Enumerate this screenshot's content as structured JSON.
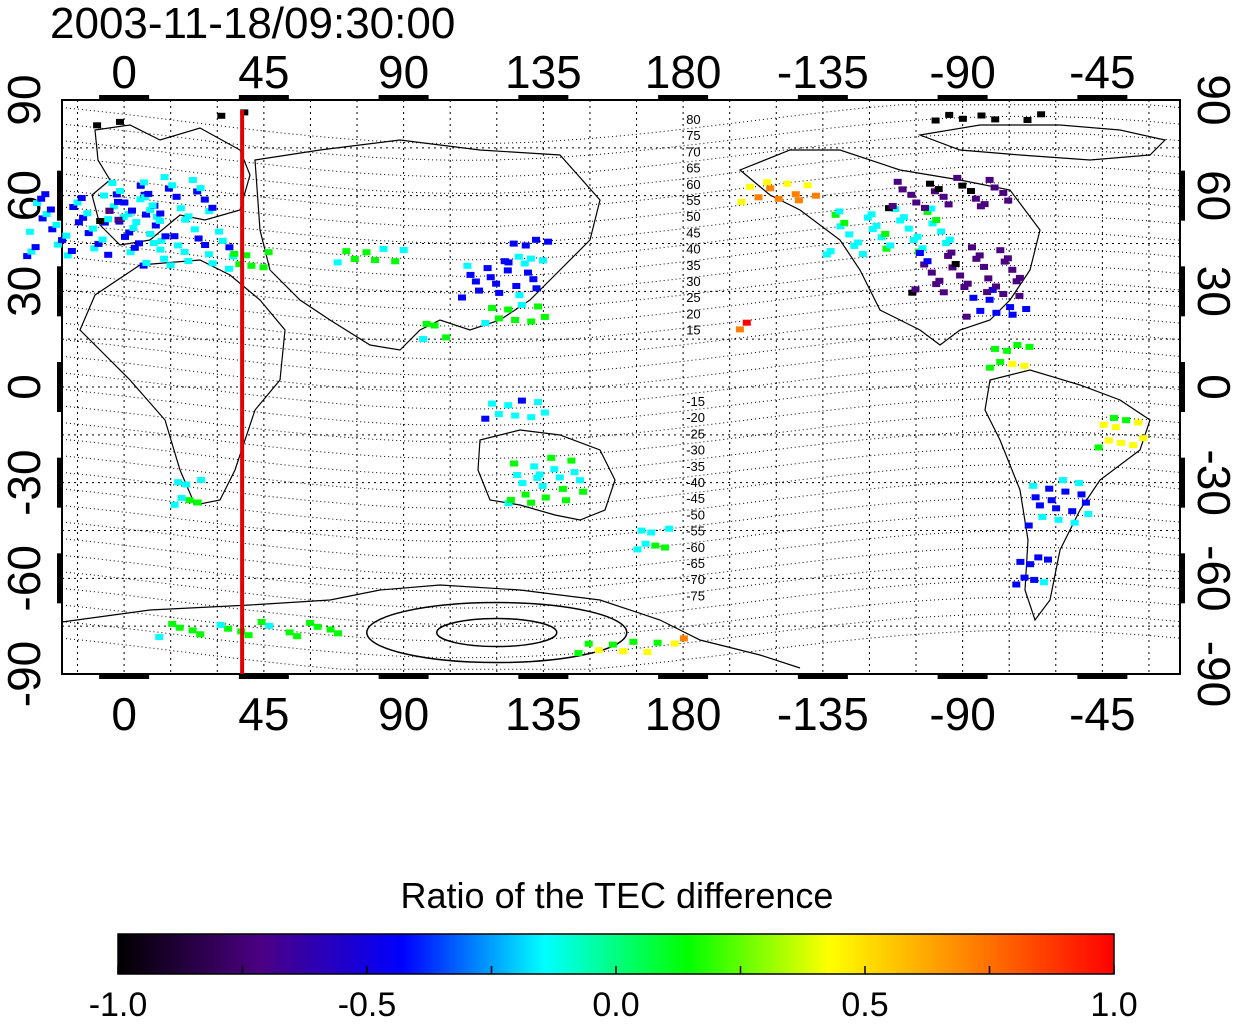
{
  "title": "2003-11-18/09:30:00",
  "lon_ticks": [
    {
      "label": "0",
      "lon": 0
    },
    {
      "label": "45",
      "lon": 45
    },
    {
      "label": "90",
      "lon": 90
    },
    {
      "label": "135",
      "lon": 135
    },
    {
      "label": "180",
      "lon": 180
    },
    {
      "label": "-135",
      "lon": 225
    },
    {
      "label": "-90",
      "lon": 270
    },
    {
      "label": "-45",
      "lon": 315
    }
  ],
  "lat_ticks": [
    {
      "label": "90",
      "lat": 90
    },
    {
      "label": "60",
      "lat": 60
    },
    {
      "label": "30",
      "lat": 30
    },
    {
      "label": "0",
      "lat": 0
    },
    {
      "label": "-30",
      "lat": -30
    },
    {
      "label": "-60",
      "lat": -60
    },
    {
      "label": "-90",
      "lat": -90
    }
  ],
  "lon_range": [
    -20,
    340
  ],
  "lat_range": [
    -90,
    90
  ],
  "marker_line_lon": 38,
  "marker_line_color": "#e00000",
  "contour_labels_north": [
    "80",
    "75",
    "70",
    "65",
    "60",
    "55",
    "50",
    "45",
    "40",
    "35",
    "30",
    "25",
    "20",
    "15"
  ],
  "contour_labels_south": [
    "-15",
    "-20",
    "-25",
    "-30",
    "-35",
    "-40",
    "-45",
    "-50",
    "-55",
    "-60",
    "-65",
    "-70",
    "-75"
  ],
  "colorbar": {
    "title": "Ratio of the TEC difference",
    "tick_labels": [
      "-1.0",
      "-0.5",
      "0.0",
      "0.5",
      "1.0"
    ],
    "tick_values": [
      -1.0,
      -0.5,
      0.0,
      0.5,
      1.0
    ],
    "colors": [
      "#000000",
      "#4b0082",
      "#0000ff",
      "#00ffff",
      "#00ff00",
      "#ffff00",
      "#ff8000",
      "#ff0000"
    ]
  },
  "patches": [
    {
      "lon": -10,
      "lat": 52,
      "w": 45,
      "h": 20,
      "v": -0.3
    },
    {
      "lon": 10,
      "lat": 60,
      "w": 35,
      "h": 15,
      "v": -0.25
    },
    {
      "lon": 20,
      "lat": 45,
      "w": 30,
      "h": 12,
      "v": -0.2
    },
    {
      "lon": 40,
      "lat": 42,
      "w": 15,
      "h": 8,
      "v": 0.1
    },
    {
      "lon": -5,
      "lat": 56,
      "w": 8,
      "h": 6,
      "v": -0.8
    },
    {
      "lon": 80,
      "lat": 43,
      "w": 25,
      "h": 6,
      "v": 0.05
    },
    {
      "lon": 120,
      "lat": 35,
      "w": 25,
      "h": 12,
      "v": -0.4
    },
    {
      "lon": 130,
      "lat": 45,
      "w": 15,
      "h": 10,
      "v": -0.3
    },
    {
      "lon": 125,
      "lat": 25,
      "w": 20,
      "h": 8,
      "v": 0.1
    },
    {
      "lon": 245,
      "lat": 50,
      "w": 40,
      "h": 15,
      "v": -0.1
    },
    {
      "lon": 270,
      "lat": 38,
      "w": 35,
      "h": 15,
      "v": -0.7
    },
    {
      "lon": 280,
      "lat": 28,
      "w": 20,
      "h": 10,
      "v": -0.5
    },
    {
      "lon": 210,
      "lat": 63,
      "w": 25,
      "h": 8,
      "v": 0.6
    },
    {
      "lon": 265,
      "lat": 62,
      "w": 40,
      "h": 10,
      "v": -0.75
    },
    {
      "lon": 285,
      "lat": 12,
      "w": 15,
      "h": 10,
      "v": 0.2
    },
    {
      "lon": 320,
      "lat": -12,
      "w": 15,
      "h": 12,
      "v": 0.4
    },
    {
      "lon": 300,
      "lat": -35,
      "w": 20,
      "h": 15,
      "v": -0.3
    },
    {
      "lon": 292,
      "lat": -55,
      "w": 12,
      "h": 12,
      "v": -0.4
    },
    {
      "lon": 135,
      "lat": -28,
      "w": 25,
      "h": 15,
      "v": 0.0
    },
    {
      "lon": 170,
      "lat": -45,
      "w": 12,
      "h": 10,
      "v": -0.1
    },
    {
      "lon": 20,
      "lat": -30,
      "w": 10,
      "h": 12,
      "v": -0.1
    },
    {
      "lon": 40,
      "lat": -75,
      "w": 60,
      "h": 5,
      "v": 0.1
    },
    {
      "lon": 160,
      "lat": -80,
      "w": 30,
      "h": 5,
      "v": 0.3
    },
    {
      "lon": 180,
      "lat": -78,
      "w": 8,
      "h": 3,
      "v": 0.65
    },
    {
      "lon": 200,
      "lat": 21,
      "w": 6,
      "h": 4,
      "v": 0.9
    },
    {
      "lon": 100,
      "lat": 20,
      "w": 10,
      "h": 8,
      "v": 0.1
    },
    {
      "lon": 125,
      "lat": -5,
      "w": 20,
      "h": 8,
      "v": -0.2
    },
    {
      "lon": 280,
      "lat": 86,
      "w": 40,
      "h": 3,
      "v": -1.0
    },
    {
      "lon": 0,
      "lat": 84,
      "w": 20,
      "h": 2,
      "v": -1.0
    },
    {
      "lon": 40,
      "lat": 87,
      "w": 20,
      "h": 2,
      "v": -1.0
    }
  ]
}
